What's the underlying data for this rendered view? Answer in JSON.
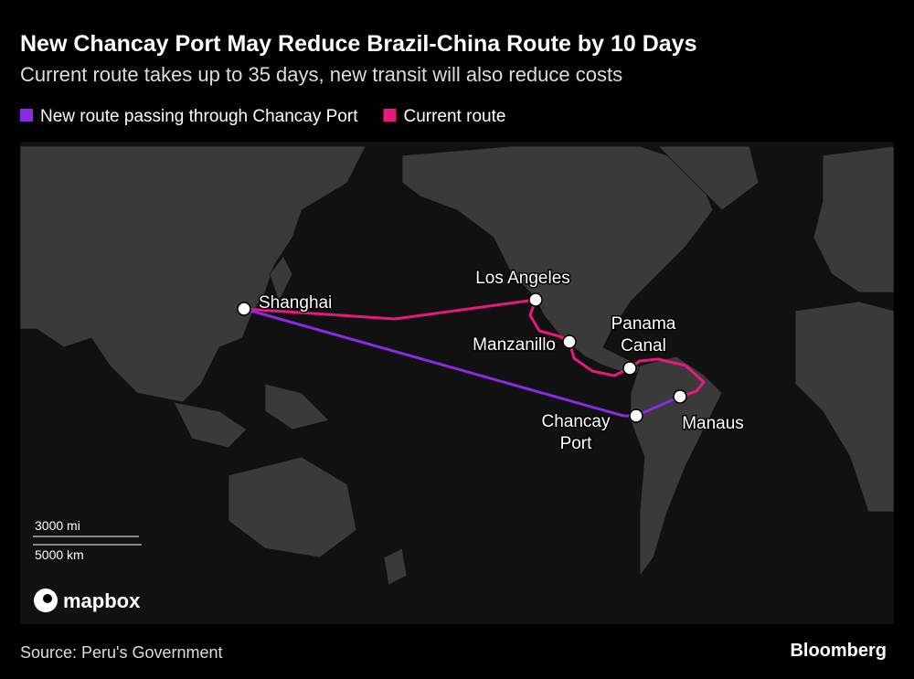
{
  "header": {
    "title": "New Chancay Port May Reduce Brazil-China Route by 10 Days",
    "subtitle": "Current route takes up to 35 days, new transit will also reduce costs"
  },
  "legend": [
    {
      "label": "New route passing through Chancay Port",
      "color": "#8a2be2"
    },
    {
      "label": "Current route",
      "color": "#e8197d"
    }
  ],
  "places": [
    {
      "label_lines": [
        "Shanghai"
      ]
    },
    {
      "label_lines": [
        "Los Angeles"
      ]
    },
    {
      "label_lines": [
        "Manzanillo"
      ]
    },
    {
      "label_lines": [
        "Panama",
        "Canal"
      ]
    },
    {
      "label_lines": [
        "Chancay",
        "Port"
      ]
    },
    {
      "label_lines": [
        "Manaus"
      ]
    }
  ],
  "scale": {
    "miles": "3000 mi",
    "km": "5000 km"
  },
  "attribution": "mapbox",
  "footer": {
    "source": "Source: Peru's Government",
    "brand": "Bloomberg"
  }
}
